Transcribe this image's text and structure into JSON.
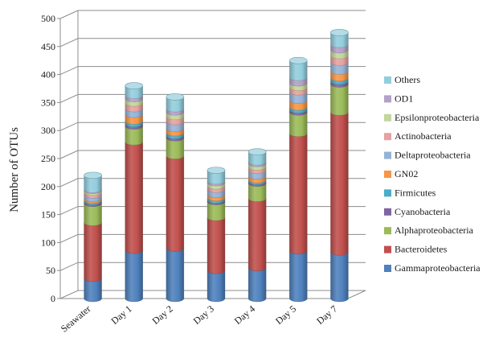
{
  "chart_data": {
    "type": "bar",
    "stacked": true,
    "three_d": true,
    "title": "",
    "xlabel": "",
    "ylabel": "Number of OTUs",
    "ylim": [
      0,
      500
    ],
    "yticks": [
      0,
      50,
      100,
      150,
      200,
      250,
      300,
      350,
      400,
      450,
      500
    ],
    "grid": true,
    "legend_position": "right",
    "categories": [
      "Seawater",
      "Day 1",
      "Day 2",
      "Day 3",
      "Day 4",
      "Day 5",
      "Day 7"
    ],
    "series": [
      {
        "name": "Gammaproteobacteria",
        "color": "#4f81bd",
        "values": [
          36,
          86,
          90,
          50,
          55,
          85,
          83
        ]
      },
      {
        "name": "Bacteroidetes",
        "color": "#c0504d",
        "values": [
          100,
          194,
          165,
          95,
          124,
          210,
          250
        ]
      },
      {
        "name": "Alphaproteobacteria",
        "color": "#9bbb59",
        "values": [
          34,
          28,
          32,
          28,
          27,
          38,
          50
        ]
      },
      {
        "name": "Cyanobacteria",
        "color": "#8064a2",
        "values": [
          3,
          4,
          4,
          3,
          3,
          4,
          5
        ]
      },
      {
        "name": "Firmicutes",
        "color": "#4bacc6",
        "values": [
          3,
          5,
          5,
          4,
          3,
          5,
          6
        ]
      },
      {
        "name": "GN02",
        "color": "#f79646",
        "values": [
          3,
          12,
          8,
          6,
          7,
          12,
          12
        ]
      },
      {
        "name": "Deltaproteobacteria",
        "color": "#95b3d7",
        "values": [
          6,
          10,
          12,
          9,
          10,
          15,
          16
        ]
      },
      {
        "name": "Actinobacteria",
        "color": "#e6a2a0",
        "values": [
          5,
          10,
          9,
          6,
          6,
          8,
          12
        ]
      },
      {
        "name": "Epsilonproteobacteria",
        "color": "#c3d69b",
        "values": [
          3,
          8,
          8,
          6,
          6,
          8,
          10
        ]
      },
      {
        "name": "OD1",
        "color": "#b3a2c7",
        "values": [
          2,
          6,
          6,
          3,
          3,
          10,
          10
        ]
      },
      {
        "name": "Others",
        "color": "#93cddd",
        "values": [
          25,
          17,
          21,
          19,
          18,
          30,
          21
        ]
      }
    ]
  }
}
